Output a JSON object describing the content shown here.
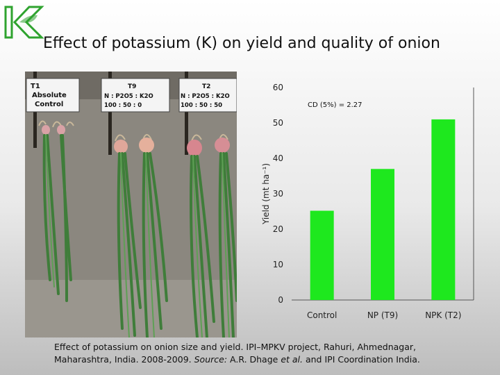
{
  "title": "Effect of potassium (K) on yield and quality of onion",
  "logo": {
    "icon": "k-leaf-logo-icon",
    "color": "#2fa32f"
  },
  "photo": {
    "label_t1": {
      "id": "T1",
      "line1": "Absolute",
      "line2": "Control"
    },
    "label_t9": {
      "id": "T9",
      "line1": "N : P2O5 : K2O",
      "line2": "100 :  50  :  0"
    },
    "label_t2": {
      "id": "T2",
      "line1": "N : P2O5 : K2O",
      "line2": "100 :  50  : 50"
    }
  },
  "chart_data": {
    "type": "bar",
    "categories": [
      "Control",
      "NP (T9)",
      "NPK (T2)"
    ],
    "values": [
      25.2,
      37,
      51
    ],
    "ylabel": "Yield (mt ha⁻¹)",
    "ylim": [
      0,
      60
    ],
    "yticks": [
      "0",
      "10",
      "20",
      "30",
      "40",
      "50",
      "60"
    ],
    "annotation": "CD  (5%) = 2.27",
    "bar_color": "#1ee81e",
    "grid": false
  },
  "caption": {
    "line1": "Effect of potassium on onion size and yield. IPI–MPKV project, Rahuri, Ahmednagar,",
    "line2_pre": "Maharashtra, India. 2008-2009. ",
    "source_label": "Source:",
    "line2_mid": " A.R. Dhage ",
    "etal": "et al.",
    "line2_post": " and IPI Coordination India."
  }
}
